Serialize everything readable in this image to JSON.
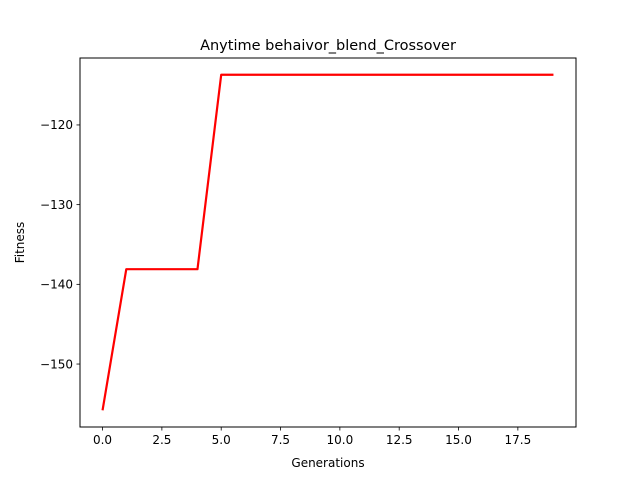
{
  "chart_data": {
    "type": "line",
    "title": "Anytime behaivor_blend_Crossover",
    "xlabel": "Generations",
    "ylabel": "Fitness",
    "xlim": [
      -0.95,
      19.95
    ],
    "ylim": [
      -157.9,
      -111.6
    ],
    "xticks": [
      0.0,
      2.5,
      5.0,
      7.5,
      10.0,
      12.5,
      15.0,
      17.5
    ],
    "xtick_labels": [
      "0.0",
      "2.5",
      "5.0",
      "7.5",
      "10.0",
      "12.5",
      "15.0",
      "17.5"
    ],
    "yticks": [
      -150,
      -140,
      -130,
      -120
    ],
    "ytick_labels": [
      "−150",
      "−140",
      "−130",
      "−120"
    ],
    "grid": false,
    "series": [
      {
        "color": "#ff0000",
        "x": [
          0,
          1,
          2,
          3,
          4,
          5,
          6,
          7,
          8,
          9,
          10,
          11,
          12,
          13,
          14,
          15,
          16,
          17,
          18,
          19
        ],
        "y": [
          -155.8,
          -138.1,
          -138.1,
          -138.1,
          -138.1,
          -113.7,
          -113.7,
          -113.7,
          -113.7,
          -113.7,
          -113.7,
          -113.7,
          -113.7,
          -113.7,
          -113.7,
          -113.7,
          -113.7,
          -113.7,
          -113.7,
          -113.7
        ]
      }
    ]
  }
}
